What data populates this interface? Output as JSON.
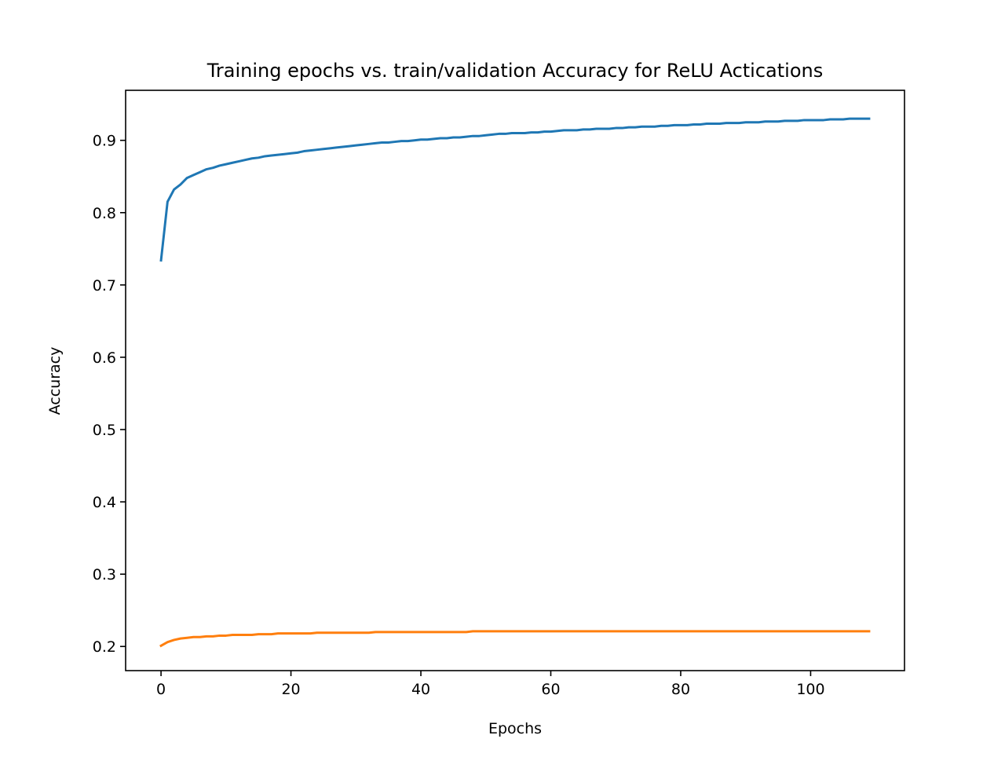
{
  "chart_data": {
    "type": "line",
    "title": "Training epochs vs. train/validation Accuracy for ReLU Actications",
    "xlabel": "Epochs",
    "ylabel": "Accuracy",
    "xlim": [
      -5.45,
      114.45
    ],
    "ylim": [
      0.1666,
      0.9692
    ],
    "xticks": [
      0,
      20,
      40,
      60,
      80,
      100
    ],
    "yticks": [
      0.2,
      0.3,
      0.4,
      0.5,
      0.6,
      0.7,
      0.8,
      0.9
    ],
    "xtick_labels": [
      "0",
      "20",
      "40",
      "60",
      "80",
      "100"
    ],
    "ytick_labels": [
      "0.2",
      "0.3",
      "0.4",
      "0.5",
      "0.6",
      "0.7",
      "0.8",
      "0.9"
    ],
    "grid": false,
    "legend": null,
    "colors": {
      "train": "#1f77b4",
      "validation": "#ff7f0e"
    },
    "x_range": {
      "start": 0,
      "end": 109,
      "step": 1
    },
    "series": [
      {
        "color": "#1f77b4",
        "values": [
          0.734,
          0.815,
          0.832,
          0.839,
          0.848,
          0.852,
          0.856,
          0.86,
          0.862,
          0.865,
          0.867,
          0.869,
          0.871,
          0.873,
          0.875,
          0.876,
          0.878,
          0.879,
          0.88,
          0.881,
          0.882,
          0.883,
          0.885,
          0.886,
          0.887,
          0.888,
          0.889,
          0.89,
          0.891,
          0.892,
          0.893,
          0.894,
          0.895,
          0.896,
          0.897,
          0.897,
          0.898,
          0.899,
          0.899,
          0.9,
          0.901,
          0.901,
          0.902,
          0.903,
          0.903,
          0.904,
          0.904,
          0.905,
          0.906,
          0.906,
          0.907,
          0.908,
          0.909,
          0.909,
          0.91,
          0.91,
          0.91,
          0.911,
          0.911,
          0.912,
          0.912,
          0.913,
          0.914,
          0.914,
          0.914,
          0.915,
          0.915,
          0.916,
          0.916,
          0.916,
          0.917,
          0.917,
          0.918,
          0.918,
          0.919,
          0.919,
          0.919,
          0.92,
          0.92,
          0.921,
          0.921,
          0.921,
          0.922,
          0.922,
          0.923,
          0.923,
          0.923,
          0.924,
          0.924,
          0.924,
          0.925,
          0.925,
          0.925,
          0.926,
          0.926,
          0.926,
          0.927,
          0.927,
          0.927,
          0.928,
          0.928,
          0.928,
          0.928,
          0.929,
          0.929,
          0.929,
          0.93,
          0.93,
          0.93,
          0.93
        ]
      },
      {
        "color": "#ff7f0e",
        "values": [
          0.201,
          0.206,
          0.209,
          0.211,
          0.212,
          0.213,
          0.213,
          0.214,
          0.214,
          0.215,
          0.215,
          0.216,
          0.216,
          0.216,
          0.216,
          0.217,
          0.217,
          0.217,
          0.218,
          0.218,
          0.218,
          0.218,
          0.218,
          0.218,
          0.219,
          0.219,
          0.219,
          0.219,
          0.219,
          0.219,
          0.219,
          0.219,
          0.219,
          0.22,
          0.22,
          0.22,
          0.22,
          0.22,
          0.22,
          0.22,
          0.22,
          0.22,
          0.22,
          0.22,
          0.22,
          0.22,
          0.22,
          0.22,
          0.221,
          0.221,
          0.221,
          0.221,
          0.221,
          0.221,
          0.221,
          0.221,
          0.221,
          0.221,
          0.221,
          0.221,
          0.221,
          0.221,
          0.221,
          0.221,
          0.221,
          0.221,
          0.221,
          0.221,
          0.221,
          0.221,
          0.221,
          0.221,
          0.221,
          0.221,
          0.221,
          0.221,
          0.221,
          0.221,
          0.221,
          0.221,
          0.221,
          0.221,
          0.221,
          0.221,
          0.221,
          0.221,
          0.221,
          0.221,
          0.221,
          0.221,
          0.221,
          0.221,
          0.221,
          0.221,
          0.221,
          0.221,
          0.221,
          0.221,
          0.221,
          0.221,
          0.221,
          0.221,
          0.221,
          0.221,
          0.221,
          0.221,
          0.221,
          0.221,
          0.221,
          0.221
        ]
      }
    ]
  }
}
